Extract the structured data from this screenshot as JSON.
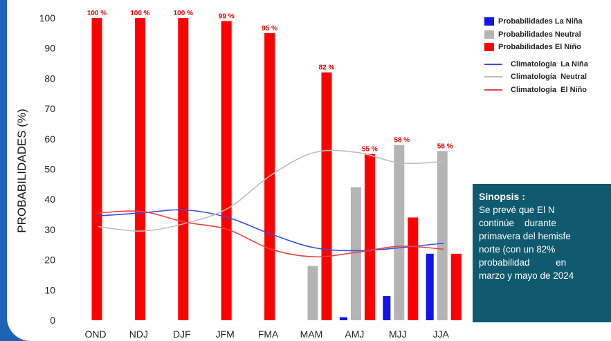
{
  "colors": {
    "la_nina": "#1414e6",
    "neutral": "#b4b4b4",
    "el_nino": "#ff0000",
    "synopsis_bg": "#0f5a6e",
    "frame": "#1f63b6"
  },
  "legend": [
    {
      "kind": "bar",
      "label": "Probabilidades La Niña",
      "color": "#1414e6"
    },
    {
      "kind": "bar",
      "label": "Probabilidades Neutral",
      "color": "#b4b4b4"
    },
    {
      "kind": "bar",
      "label": "Probabilidades El Niño",
      "color": "#ff0000"
    },
    {
      "kind": "line",
      "label": "Climatología  La Niña",
      "color": "#3a4bdc"
    },
    {
      "kind": "line",
      "label": "Climatología  Neutral",
      "color": "#bdbdbd"
    },
    {
      "kind": "line",
      "label": "Climatología  El Niño",
      "color": "#f04040"
    }
  ],
  "synopsis": {
    "title": "Sinopsis :",
    "lines": [
      "Se prevé que El N",
      "continúe    durante",
      "primavera del hemisfe",
      "norte (con un 82%",
      "probabilidad          en",
      "marzo y mayo de 2024"
    ]
  },
  "chart_data": {
    "type": "bar",
    "ylabel": "PROBABILIDADES (%)",
    "xlabel": "",
    "ylim": [
      0,
      100
    ],
    "yticks": [
      0,
      10,
      20,
      30,
      40,
      50,
      60,
      70,
      80,
      90,
      100
    ],
    "grid": false,
    "legend_position": "right",
    "categories": [
      "OND",
      "NDJ",
      "DJF",
      "JFM",
      "FMA",
      "MAM",
      "AMJ",
      "MJJ",
      "JJA"
    ],
    "series": [
      {
        "name": "Probabilidades La Niña",
        "key": "la_nina",
        "values": [
          0,
          0,
          0,
          0,
          0,
          0,
          1,
          8,
          22
        ]
      },
      {
        "name": "Probabilidades Neutral",
        "key": "neutral",
        "values": [
          0,
          0,
          0,
          1,
          5,
          18,
          44,
          58,
          56
        ]
      },
      {
        "name": "Probabilidades El Niño",
        "key": "el_nino",
        "values": [
          100,
          100,
          100,
          99,
          95,
          82,
          55,
          34,
          22
        ]
      }
    ],
    "data_labels": {
      "series": "Probabilidades El Niño",
      "labels": [
        "100 %",
        "100 %",
        "100 %",
        "99 %",
        "95 %",
        "82 %",
        "55 %",
        "58 %",
        "56 %"
      ],
      "anchor_values": [
        100,
        100,
        100,
        99,
        95,
        82,
        55,
        58,
        56
      ]
    },
    "lines": [
      {
        "name": "Climatología  La Niña",
        "key": "clim_la_nina",
        "values": [
          34.5,
          35.5,
          36.5,
          34,
          28.5,
          24,
          23,
          24,
          25.5
        ]
      },
      {
        "name": "Climatología  Neutral",
        "key": "clim_neutral",
        "values": [
          31,
          29.5,
          32,
          37,
          48,
          55.5,
          55.5,
          52,
          52.5
        ]
      },
      {
        "name": "Climatología  El Niño",
        "key": "clim_el_nino",
        "values": [
          35.5,
          36,
          32.5,
          30,
          23.5,
          21,
          22.5,
          24.5,
          23.5
        ]
      }
    ]
  }
}
